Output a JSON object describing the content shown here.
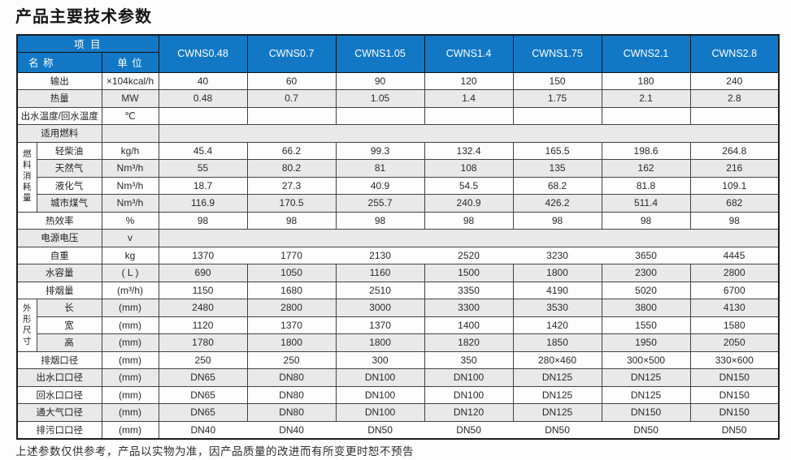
{
  "title": "产品主要技术参数",
  "footer_note": "上述参数仅供参考，产品以实物为准，因产品质量的改进而有所变更时恕不预告",
  "colors": {
    "header_blue": "#1278c6",
    "row_alt_gray": "#e9e9e9",
    "border_dark": "#1c1c1c",
    "border_inner": "#424242"
  },
  "table": {
    "corner_header": "项 目",
    "name_header": "名 称",
    "unit_header": "单 位",
    "models": [
      "CWNS0.48",
      "CWNS0.7",
      "CWNS1.05",
      "CWNS1.4",
      "CWNS1.75",
      "CWNS2.1",
      "CWNS2.8"
    ],
    "rows": [
      {
        "name": "输出",
        "unit": "×104kcal/h",
        "values": [
          "40",
          "60",
          "90",
          "120",
          "150",
          "180",
          "240"
        ],
        "shaded": false
      },
      {
        "name": "热量",
        "unit": "MW",
        "values": [
          "0.48",
          "0.7",
          "1.05",
          "1.4",
          "1.75",
          "2.1",
          "2.8"
        ],
        "shaded": true
      },
      {
        "name": "出水温度/回水温度",
        "unit": "℃",
        "values": [
          "",
          "",
          "",
          "",
          "",
          "",
          ""
        ],
        "shaded": false
      },
      {
        "name": "适用燃料",
        "unit": "",
        "merged_empty": true,
        "shaded": true
      },
      {
        "group": "燃料消耗量",
        "group_span": 4,
        "name": "轻柴油",
        "unit": "kg/h",
        "values": [
          "45.4",
          "66.2",
          "99.3",
          "132.4",
          "165.5",
          "198.6",
          "264.8"
        ],
        "shaded": false
      },
      {
        "in_group": true,
        "name": "天然气",
        "unit": "Nm³/h",
        "values": [
          "55",
          "80.2",
          "81",
          "108",
          "135",
          "162",
          "216"
        ],
        "shaded": true
      },
      {
        "in_group": true,
        "name": "液化气",
        "unit": "Nm³/h",
        "values": [
          "18.7",
          "27.3",
          "40.9",
          "54.5",
          "68.2",
          "81.8",
          "109.1"
        ],
        "shaded": false
      },
      {
        "in_group": true,
        "name": "城市煤气",
        "unit": "Nm³/h",
        "values": [
          "116.9",
          "170.5",
          "255.7",
          "240.9",
          "426.2",
          "511.4",
          "682"
        ],
        "shaded": true
      },
      {
        "name": "热效率",
        "unit": "%",
        "values": [
          "98",
          "98",
          "98",
          "98",
          "98",
          "98",
          "98"
        ],
        "shaded": false
      },
      {
        "name": "电源电压",
        "unit": "v",
        "merged_empty": true,
        "shaded": true
      },
      {
        "name": "自重",
        "unit": "kg",
        "values": [
          "1370",
          "1770",
          "2130",
          "2520",
          "3230",
          "3650",
          "4445"
        ],
        "shaded": false,
        "no_dividers": true
      },
      {
        "name": "水容量",
        "unit": "( L )",
        "values": [
          "690",
          "1050",
          "1160",
          "1500",
          "1800",
          "2300",
          "2800"
        ],
        "shaded": true
      },
      {
        "name": "排烟量",
        "unit": "(m³/h)",
        "values": [
          "1150",
          "1680",
          "2510",
          "3350",
          "4190",
          "5020",
          "6700"
        ],
        "shaded": false
      },
      {
        "group": "外形尺寸",
        "group_span": 3,
        "name": "长",
        "unit": "(mm)",
        "values": [
          "2480",
          "2800",
          "3000",
          "3300",
          "3530",
          "3800",
          "4130"
        ],
        "shaded": true
      },
      {
        "in_group": true,
        "name": "宽",
        "unit": "(mm)",
        "values": [
          "1120",
          "1370",
          "1370",
          "1400",
          "1420",
          "1550",
          "1580"
        ],
        "shaded": false
      },
      {
        "in_group": true,
        "name": "高",
        "unit": "(mm)",
        "values": [
          "1780",
          "1800",
          "1800",
          "1820",
          "1850",
          "1950",
          "2050"
        ],
        "shaded": true
      },
      {
        "name": "排烟口径",
        "unit": "(mm)",
        "values": [
          "250",
          "250",
          "300",
          "350",
          "280×460",
          "300×500",
          "330×600"
        ],
        "shaded": false
      },
      {
        "name": "出水口口径",
        "unit": "(mm)",
        "values": [
          "DN65",
          "DN80",
          "DN100",
          "DN100",
          "DN125",
          "DN125",
          "DN150"
        ],
        "shaded": true
      },
      {
        "name": "回水口口径",
        "unit": "(mm)",
        "values": [
          "DN65",
          "DN80",
          "DN100",
          "DN100",
          "DN125",
          "DN125",
          "DN150"
        ],
        "shaded": false
      },
      {
        "name": "通大气口径",
        "unit": "(mm)",
        "values": [
          "DN65",
          "DN80",
          "DN100",
          "DN120",
          "DN125",
          "DN150",
          "DN150"
        ],
        "shaded": true
      },
      {
        "name": "排污口口径",
        "unit": "(mm)",
        "values": [
          "DN40",
          "DN40",
          "DN50",
          "DN50",
          "DN50",
          "DN50",
          "DN50"
        ],
        "shaded": false,
        "no_dividers": true
      }
    ]
  }
}
